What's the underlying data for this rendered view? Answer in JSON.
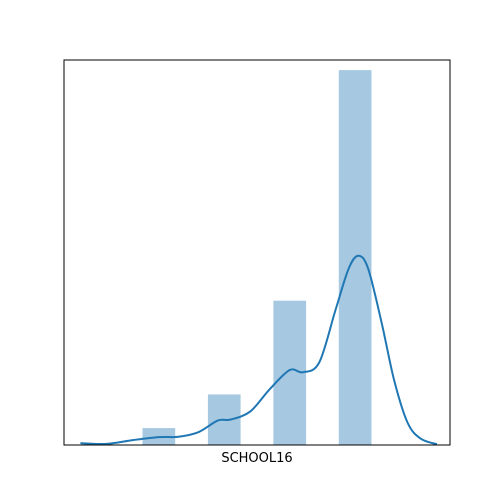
{
  "chart_data": {
    "type": "bar",
    "xlabel": "SCHOOL16",
    "ylabel": "",
    "x_ticks_visible": false,
    "y_ticks_visible": false,
    "ylim": [
      0,
      100
    ],
    "bar_color": "#a6c8e0",
    "kde_color": "#1f77b4",
    "bars": [
      {
        "x": 1,
        "value": 4.5
      },
      {
        "x": 2,
        "value": 13.5
      },
      {
        "x": 3,
        "value": 38.5
      },
      {
        "x": 4,
        "value": 100
      }
    ],
    "kde": {
      "x": [
        -0.2,
        0.2,
        0.6,
        1.0,
        1.3,
        1.6,
        1.9,
        2.1,
        2.4,
        2.7,
        3.0,
        3.2,
        3.45,
        3.7,
        3.9,
        4.05,
        4.2,
        4.4,
        4.6,
        4.8,
        5.0,
        5.25
      ],
      "y": [
        0.5,
        0.3,
        1.3,
        2.1,
        2.2,
        3.4,
        6.5,
        6.8,
        9.0,
        15.0,
        20.0,
        19.4,
        22.0,
        36.0,
        47.0,
        50.5,
        47.0,
        33.0,
        17.0,
        6.0,
        1.7,
        0.2
      ]
    }
  }
}
